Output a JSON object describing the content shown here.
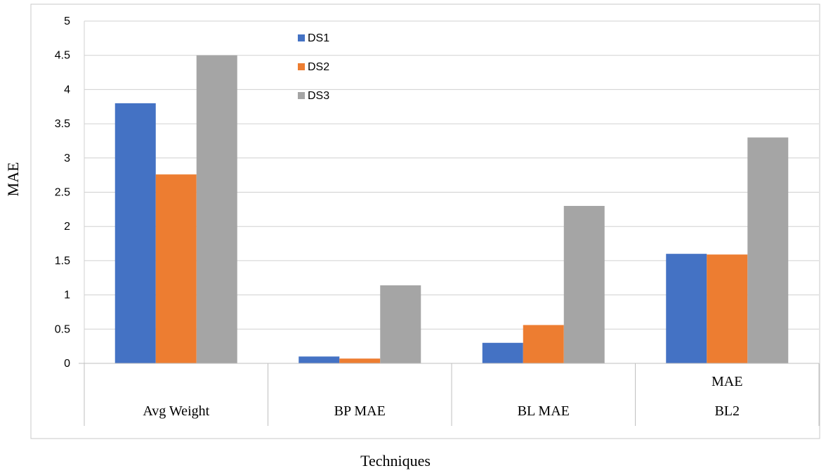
{
  "chart_data": {
    "type": "bar",
    "title": "",
    "xlabel": "Techniques",
    "ylabel": "MAE",
    "categories": [
      [
        "Avg Weight"
      ],
      [
        "BP MAE"
      ],
      [
        "BL MAE"
      ],
      [
        "MAE",
        "BL2"
      ]
    ],
    "series": [
      {
        "name": "DS1",
        "color": "#4472C4",
        "values": [
          3.8,
          0.1,
          0.3,
          1.6
        ]
      },
      {
        "name": "DS2",
        "color": "#ED7D31",
        "values": [
          2.76,
          0.07,
          0.56,
          1.59
        ]
      },
      {
        "name": "DS3",
        "color": "#A5A5A5",
        "values": [
          4.5,
          1.14,
          2.3,
          3.3
        ]
      }
    ],
    "ylim": [
      0,
      5
    ],
    "yticks": [
      "0",
      "0.5",
      "1",
      "1.5",
      "2",
      "2.5",
      "3",
      "3.5",
      "4",
      "4.5",
      "5"
    ],
    "grid": true,
    "legend_position": "top-center"
  }
}
